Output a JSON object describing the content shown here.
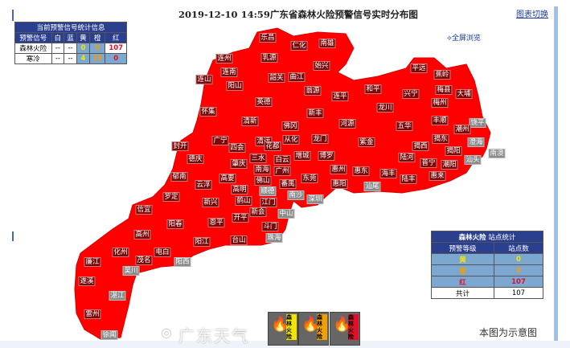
{
  "header": {
    "title": "2019-12-10 14:59广东省森林火险预警信号实时分布图",
    "switch_link": "图表切换",
    "fullscreen_link": "全屏浏览"
  },
  "top_table": {
    "caption": "当前预警信号统计信息",
    "columns": [
      "预警信号",
      "白",
      "蓝",
      "黄",
      "橙",
      "红"
    ],
    "rows": [
      {
        "name": "森林火险",
        "white": "--",
        "blue": "--",
        "yellow": "0",
        "orange": "0",
        "red": "107"
      },
      {
        "name": "寒冷",
        "white": "--",
        "blue": "--",
        "yellow": "4",
        "orange": "29",
        "red": "0"
      }
    ]
  },
  "station_table": {
    "caption_bold": "森林火险",
    "caption": "站点统计",
    "columns": [
      "预警等级",
      "站点数"
    ],
    "rows": [
      {
        "level": "黄",
        "count": "0"
      },
      {
        "level": "橙",
        "count": "0"
      },
      {
        "level": "红",
        "count": "107"
      }
    ],
    "total_label": "共计",
    "total": "107"
  },
  "map": {
    "fill_color": "#ff0000",
    "warning_level": "红",
    "regions": [
      "乐昌",
      "仁化",
      "南雄",
      "连州",
      "乳源",
      "始兴",
      "连山",
      "连南",
      "阳山",
      "韶关",
      "曲江",
      "翁源",
      "英德",
      "连平",
      "怀集",
      "新丰",
      "清新",
      "佛冈",
      "河源",
      "广宁",
      "清远",
      "从化",
      "龙门",
      "平远",
      "蕉岭",
      "和平",
      "兴宁",
      "梅县",
      "大埔",
      "梅州",
      "龙川",
      "五华",
      "丰顺",
      "饶平",
      "潮州",
      "紫金",
      "揭西",
      "揭东",
      "揭阳",
      "澄海",
      "南澳",
      "陆河",
      "普宁",
      "潮阳",
      "汕头",
      "惠东",
      "海丰",
      "陆丰",
      "惠来",
      "汕尾",
      "封开",
      "四会",
      "花都",
      "三水",
      "白云",
      "增城",
      "博罗",
      "德庆",
      "肇庆",
      "南海",
      "广州",
      "郁南",
      "高要",
      "佛山",
      "顺德",
      "番禺",
      "东莞",
      "惠州",
      "惠阳",
      "云浮",
      "高明",
      "罗定",
      "鹤山",
      "江门",
      "南沙",
      "深圳",
      "新兴",
      "新会",
      "中山",
      "阳春",
      "恩平",
      "开平",
      "斗门",
      "阳江",
      "台山",
      "珠海",
      "信宜",
      "高州",
      "化州",
      "电白",
      "廉江",
      "茂名",
      "阳西",
      "吴川",
      "遂溪",
      "湛江",
      "雷州",
      "徐闻"
    ]
  },
  "legend": [
    {
      "text": "森林火险",
      "color": "#f2e600",
      "icon": "flame-icon"
    },
    {
      "text": "森林火险",
      "color": "#f0a000",
      "icon": "flame-icon"
    },
    {
      "text": "森林火险",
      "color": "#e0102a",
      "icon": "flame-icon"
    }
  ],
  "watermark": "广东天气",
  "note": "本图为示意图"
}
